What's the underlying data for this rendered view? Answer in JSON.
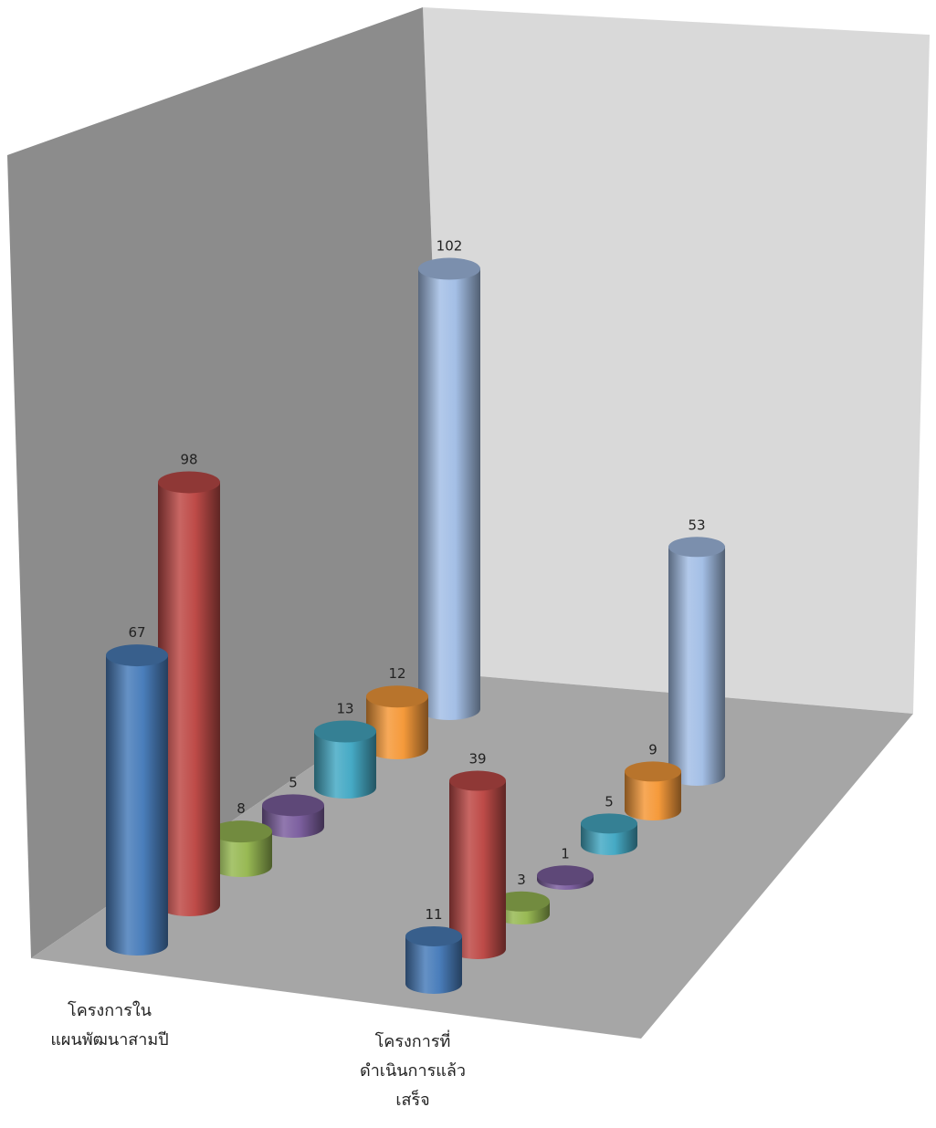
{
  "chart_data": {
    "type": "bar",
    "shape": "cylinder-3d",
    "categories": [
      "โครงการใน\nแผนพัฒนาสามปี",
      "โครงการที่\nดำเนินการแล้ว\nเสร็จ"
    ],
    "series": [
      {
        "values": [
          67,
          11
        ],
        "color": "#4a7ebb"
      },
      {
        "values": [
          98,
          39
        ],
        "color": "#be4b48"
      },
      {
        "values": [
          8,
          3
        ],
        "color": "#98b954"
      },
      {
        "values": [
          5,
          1
        ],
        "color": "#7d60a0"
      },
      {
        "values": [
          13,
          5
        ],
        "color": "#46aac5"
      },
      {
        "values": [
          12,
          9
        ],
        "color": "#f59a3b"
      },
      {
        "values": [
          102,
          53
        ],
        "color": "#a4bfe6"
      }
    ],
    "grid": false,
    "legend": "none",
    "colors": {
      "left_wall": "#8c8c8c",
      "back_wall": "#d9d9d9",
      "floor": "#a6a6a6"
    }
  }
}
